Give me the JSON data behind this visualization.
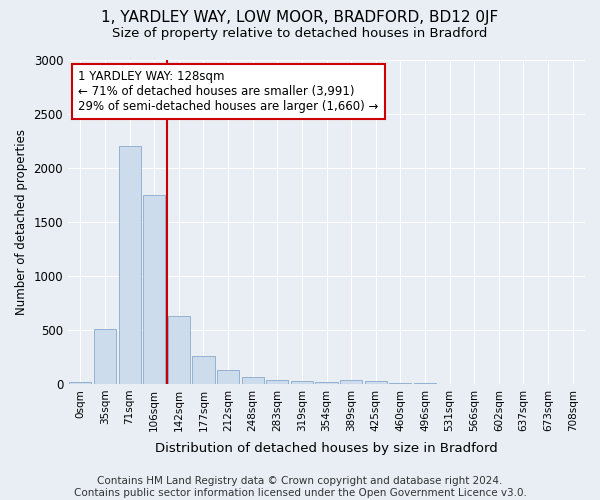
{
  "title": "1, YARDLEY WAY, LOW MOOR, BRADFORD, BD12 0JF",
  "subtitle": "Size of property relative to detached houses in Bradford",
  "xlabel": "Distribution of detached houses by size in Bradford",
  "ylabel": "Number of detached properties",
  "bar_categories": [
    "0sqm",
    "35sqm",
    "71sqm",
    "106sqm",
    "142sqm",
    "177sqm",
    "212sqm",
    "248sqm",
    "283sqm",
    "319sqm",
    "354sqm",
    "389sqm",
    "425sqm",
    "460sqm",
    "496sqm",
    "531sqm",
    "566sqm",
    "602sqm",
    "637sqm",
    "673sqm",
    "708sqm"
  ],
  "bar_values": [
    20,
    510,
    2200,
    1750,
    630,
    260,
    125,
    65,
    40,
    25,
    20,
    40,
    25,
    5,
    5,
    0,
    0,
    0,
    0,
    0,
    0
  ],
  "bar_color": "#ccdcec",
  "bar_edge_color": "#88aacc",
  "ylim": [
    0,
    3000
  ],
  "yticks": [
    0,
    500,
    1000,
    1500,
    2000,
    2500,
    3000
  ],
  "vline_x": 3.5,
  "vline_color": "#cc0000",
  "annotation_text": "1 YARDLEY WAY: 128sqm\n← 71% of detached houses are smaller (3,991)\n29% of semi-detached houses are larger (1,660) →",
  "annotation_box_color": "#ffffff",
  "annotation_box_edge_color": "#cc0000",
  "footer_text": "Contains HM Land Registry data © Crown copyright and database right 2024.\nContains public sector information licensed under the Open Government Licence v3.0.",
  "background_color": "#e8eef4",
  "plot_background_color": "#e8eef4",
  "grid_color": "#ffffff",
  "title_fontsize": 11,
  "subtitle_fontsize": 9.5,
  "footer_fontsize": 7.5
}
